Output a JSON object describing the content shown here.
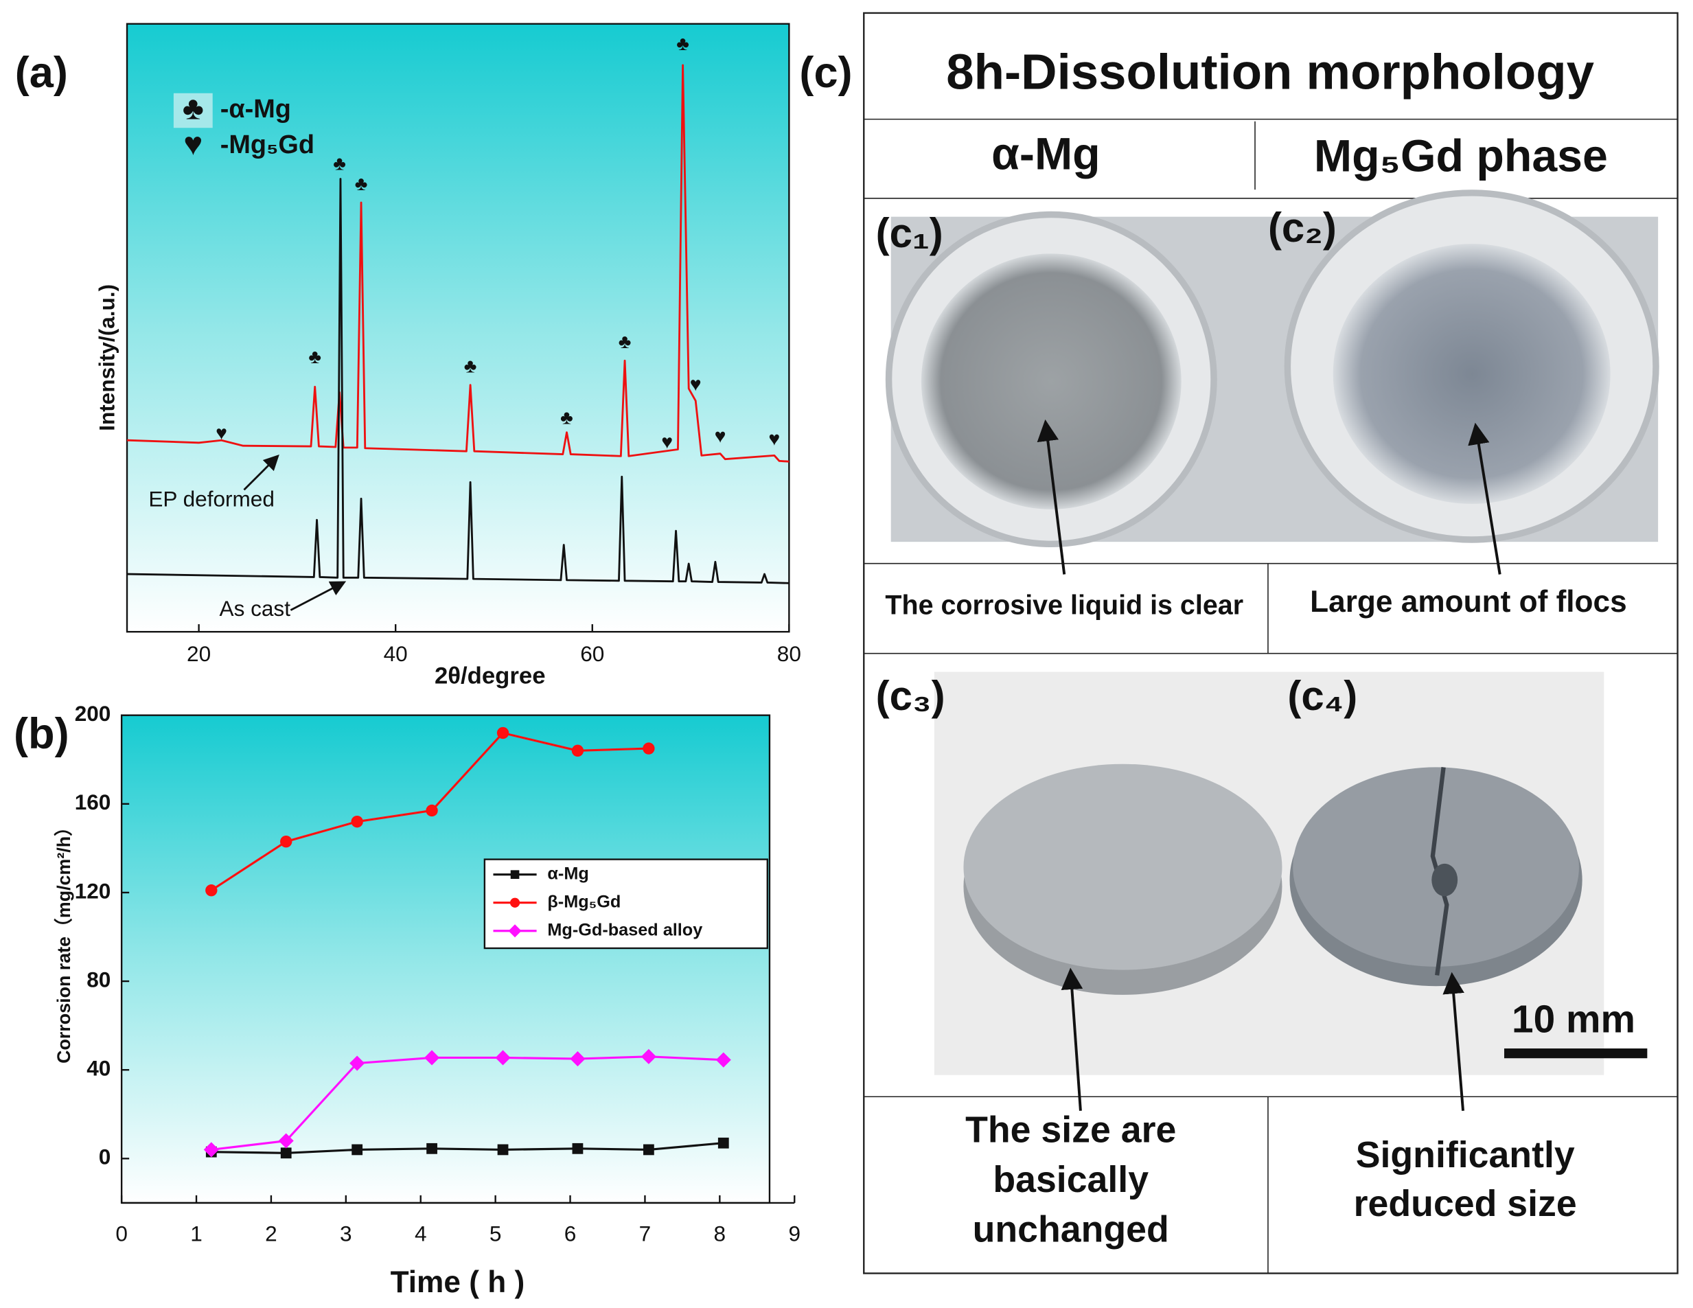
{
  "chart_data": [
    {
      "type": "line",
      "panel_label": "(a)",
      "x_label": "2θ/degree",
      "y_label": "Intensity/(a.u.)",
      "xlim": [
        12.7,
        80
      ],
      "xticks": [
        20,
        40,
        60,
        80
      ],
      "ylim": [
        0,
        100
      ],
      "legend_items": [
        {
          "symbol": "♣",
          "label": "-α-Mg"
        },
        {
          "symbol": "♥",
          "label": "-Mg₅Gd"
        }
      ],
      "series": [
        {
          "name": "EP deformed",
          "color": "#ee1111",
          "x": [
            12.7,
            20,
            22.3,
            24.5,
            31.4,
            31.8,
            32.2,
            33.9,
            34.3,
            34.7,
            36.1,
            36.5,
            36.9,
            47.2,
            47.6,
            48.0,
            57.0,
            57.4,
            57.8,
            62.9,
            63.3,
            63.7,
            68.7,
            69.2,
            69.8,
            70.5,
            71.1,
            73.0,
            73.5,
            78.5,
            79,
            80
          ],
          "values": [
            31.5,
            31.1,
            31.5,
            30.6,
            30.5,
            40.3,
            30.5,
            30.4,
            39.4,
            30.3,
            30.3,
            70.6,
            30.2,
            29.7,
            40.6,
            29.7,
            29.2,
            32.8,
            29.2,
            28.9,
            44.6,
            28.9,
            30,
            93.2,
            40,
            38,
            29,
            29.3,
            28.4,
            29,
            28.1,
            28
          ]
        },
        {
          "name": "As cast",
          "color": "#111111",
          "x": [
            12.7,
            31.7,
            32,
            32.3,
            34.1,
            34.4,
            34.7,
            36.2,
            36.5,
            36.8,
            47.3,
            47.6,
            47.9,
            56.8,
            57.1,
            57.4,
            62.7,
            63,
            63.3,
            68.2,
            68.5,
            68.8,
            69.5,
            69.8,
            70.1,
            72.2,
            72.5,
            72.8,
            77.2,
            77.5,
            77.8,
            80
          ],
          "values": [
            9.5,
            9,
            18.4,
            9,
            8.9,
            74.5,
            8.9,
            8.9,
            21.9,
            8.9,
            8.7,
            24.6,
            8.7,
            8.5,
            14.3,
            8.5,
            8.4,
            25.5,
            8.4,
            8.3,
            16.6,
            8.3,
            8.3,
            11.2,
            8.3,
            8.2,
            11.5,
            8.2,
            8.1,
            9.5,
            8.1,
            8
          ]
        }
      ],
      "annotations": [
        {
          "text": "♣",
          "x": 31.8,
          "y": 45
        },
        {
          "text": "♣",
          "x": 34.3,
          "y": 76.8
        },
        {
          "text": "♣",
          "x": 36.5,
          "y": 73.5
        },
        {
          "text": "♣",
          "x": 47.6,
          "y": 43.5
        },
        {
          "text": "♣",
          "x": 57.4,
          "y": 35
        },
        {
          "text": "♣",
          "x": 63.3,
          "y": 47.5
        },
        {
          "text": "♣",
          "x": 69.2,
          "y": 96.5
        },
        {
          "text": "♥",
          "x": 22.3,
          "y": 32.5
        },
        {
          "text": "♥",
          "x": 67.6,
          "y": 31
        },
        {
          "text": "♥",
          "x": 70.5,
          "y": 40.5
        },
        {
          "text": "♥",
          "x": 73,
          "y": 32
        },
        {
          "text": "♥",
          "x": 78.5,
          "y": 31.5
        }
      ]
    },
    {
      "type": "line",
      "panel_label": "(b)",
      "x_label": "Time ( h )",
      "y_label": "Corrosion rate（mg/cm²/h）",
      "xlim": [
        0,
        9
      ],
      "xticks": [
        0,
        1,
        2,
        3,
        4,
        5,
        6,
        7,
        8,
        9
      ],
      "ylim": [
        -20,
        200
      ],
      "yticks": [
        0,
        40,
        80,
        120,
        160,
        200
      ],
      "legend": "right",
      "series": [
        {
          "name": "α-Mg",
          "color": "#111111",
          "marker": "square",
          "x": [
            1.2,
            2.2,
            3.15,
            4.15,
            5.1,
            6.1,
            7.05,
            8.05
          ],
          "values": [
            3,
            2.5,
            4,
            4.5,
            4,
            4.5,
            4,
            7
          ]
        },
        {
          "name": "β-Mg₅Gd",
          "color": "#ff1010",
          "marker": "circle",
          "x": [
            1.2,
            2.2,
            3.15,
            4.15,
            5.1,
            6.1,
            7.05
          ],
          "values": [
            121,
            143,
            152,
            157,
            192,
            184,
            185
          ]
        },
        {
          "name": "Mg-Gd-based alloy",
          "color": "#ff10ff",
          "marker": "diamond",
          "x": [
            1.2,
            2.2,
            3.15,
            4.15,
            5.1,
            6.1,
            7.05,
            8.05
          ],
          "values": [
            4,
            8,
            43,
            45.5,
            45.5,
            45,
            46,
            44.5
          ]
        }
      ]
    }
  ],
  "panel_c": {
    "label": "(c)",
    "title": "8h-Dissolution morphology",
    "columns": [
      "α-Mg",
      "Mg₅Gd phase"
    ],
    "photo_labels": [
      "(c₁)",
      "(c₂)",
      "(c₃)",
      "(c₄)"
    ],
    "top_captions": [
      "The corrosive liquid is clear",
      "Large amount of flocs"
    ],
    "bottom_captions": [
      [
        "The size are",
        "basically",
        "unchanged"
      ],
      [
        "Significantly",
        "reduced size"
      ]
    ],
    "scale_bar": "10 mm"
  }
}
